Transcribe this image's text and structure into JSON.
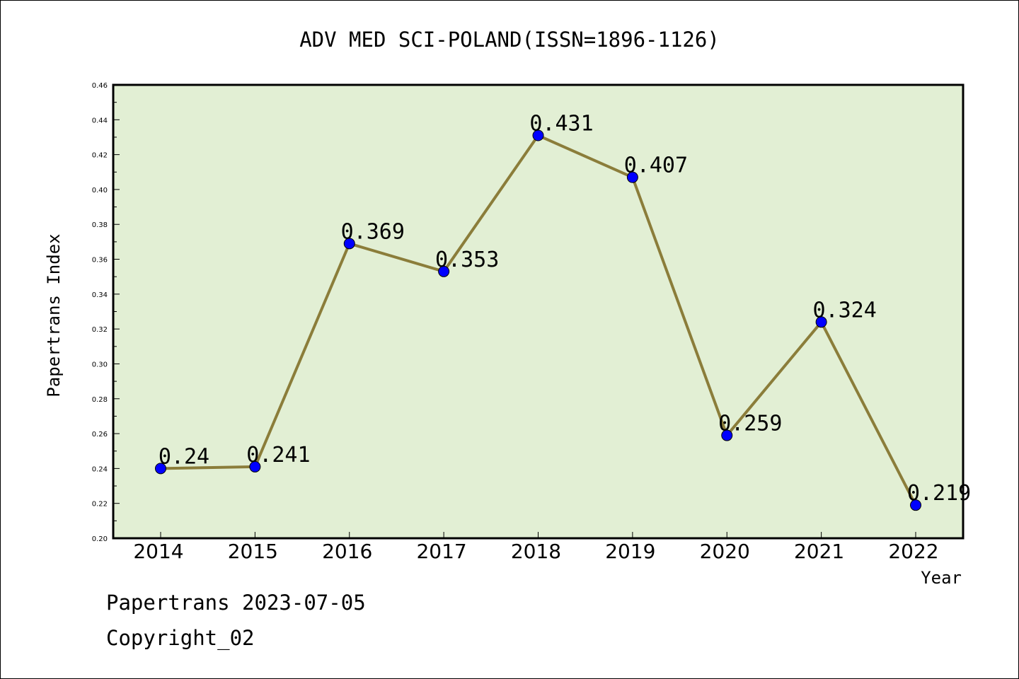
{
  "chart_data": {
    "type": "line",
    "title": "ADV MED SCI-POLAND(ISSN=1896-1126)",
    "xlabel": "Year",
    "ylabel": "Papertrans Index",
    "categories": [
      "2014",
      "2015",
      "2016",
      "2017",
      "2018",
      "2019",
      "2020",
      "2021",
      "2022"
    ],
    "values": [
      0.24,
      0.241,
      0.369,
      0.353,
      0.431,
      0.407,
      0.259,
      0.324,
      0.219
    ],
    "value_labels": [
      "0.24",
      "0.241",
      "0.369",
      "0.353",
      "0.431",
      "0.407",
      "0.259",
      "0.324",
      "0.219"
    ],
    "ylim": [
      0.2,
      0.46
    ],
    "yticks": [
      "0.20",
      "0.22",
      "0.24",
      "0.26",
      "0.28",
      "0.30",
      "0.32",
      "0.34",
      "0.36",
      "0.38",
      "0.40",
      "0.42",
      "0.44",
      "0.46"
    ],
    "grid": false,
    "colors": {
      "plot_background": "#e2efd4",
      "line": "#8b7d3a",
      "marker": "#0000ff"
    }
  },
  "footer": {
    "line1": "Papertrans 2023-07-05",
    "line2": "Copyright_02"
  }
}
